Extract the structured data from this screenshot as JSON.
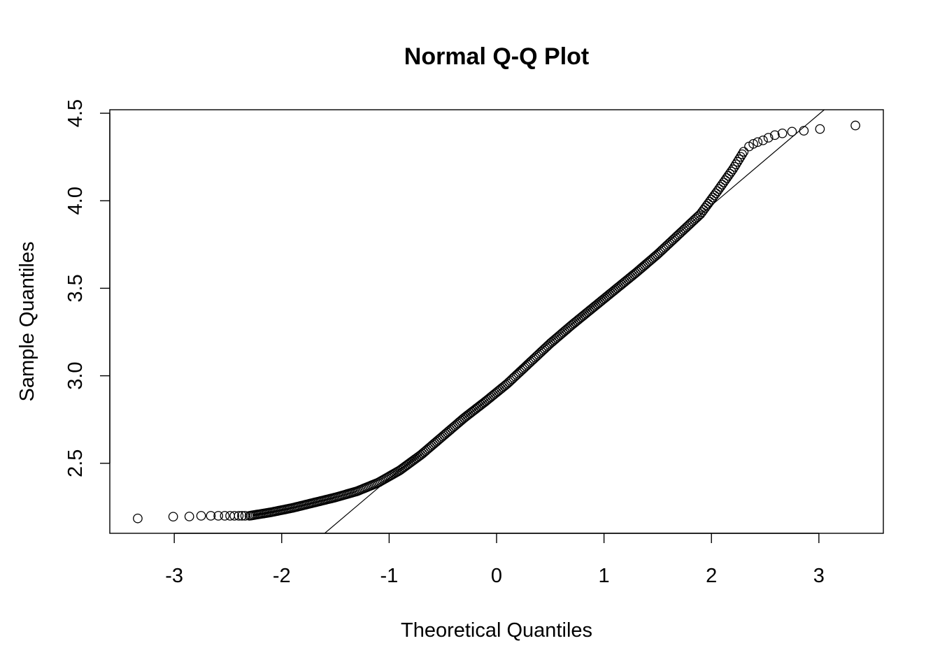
{
  "chart_data": {
    "type": "scatter",
    "title": "Normal Q-Q Plot",
    "xlabel": "Theoretical Quantiles",
    "ylabel": "Sample Quantiles",
    "xlim": [
      -3.6,
      3.6
    ],
    "ylim": [
      2.1,
      4.52
    ],
    "x_ticks": [
      -3,
      -2,
      -1,
      0,
      1,
      2,
      3
    ],
    "x_tick_labels": [
      "-3",
      "-2",
      "-1",
      "0",
      "1",
      "2",
      "3"
    ],
    "y_ticks": [
      2.5,
      3.0,
      3.5,
      4.0,
      4.5
    ],
    "y_tick_labels": [
      "2.5",
      "3.0",
      "3.5",
      "4.0",
      "4.5"
    ],
    "grid": false,
    "legend": "none",
    "marker": "open-circle",
    "reference_line": {
      "x": [
        -1.6,
        3.05
      ],
      "y": [
        2.1,
        4.52
      ]
    },
    "curve_points": [
      [
        -2.3,
        2.2
      ],
      [
        -2.1,
        2.22
      ],
      [
        -1.9,
        2.245
      ],
      [
        -1.7,
        2.275
      ],
      [
        -1.5,
        2.305
      ],
      [
        -1.3,
        2.34
      ],
      [
        -1.1,
        2.39
      ],
      [
        -0.9,
        2.46
      ],
      [
        -0.7,
        2.55
      ],
      [
        -0.5,
        2.655
      ],
      [
        -0.3,
        2.76
      ],
      [
        -0.1,
        2.855
      ],
      [
        0.1,
        2.955
      ],
      [
        0.3,
        3.07
      ],
      [
        0.5,
        3.185
      ],
      [
        0.7,
        3.29
      ],
      [
        0.9,
        3.39
      ],
      [
        1.1,
        3.49
      ],
      [
        1.3,
        3.59
      ],
      [
        1.5,
        3.695
      ],
      [
        1.7,
        3.81
      ],
      [
        1.9,
        3.925
      ],
      [
        2.05,
        4.05
      ],
      [
        2.2,
        4.18
      ],
      [
        2.3,
        4.28
      ]
    ],
    "tail_points": [
      [
        -3.34,
        2.185
      ],
      [
        -3.01,
        2.195
      ],
      [
        -2.86,
        2.196
      ],
      [
        -2.75,
        2.2
      ],
      [
        -2.66,
        2.2
      ],
      [
        -2.59,
        2.2
      ],
      [
        -2.53,
        2.2
      ],
      [
        -2.48,
        2.2
      ],
      [
        -2.44,
        2.2
      ],
      [
        -2.4,
        2.2
      ],
      [
        -2.37,
        2.2
      ],
      [
        -2.34,
        2.2
      ],
      [
        2.35,
        4.31
      ],
      [
        2.39,
        4.325
      ],
      [
        2.43,
        4.335
      ],
      [
        2.48,
        4.345
      ],
      [
        2.53,
        4.36
      ],
      [
        2.59,
        4.375
      ],
      [
        2.66,
        4.385
      ],
      [
        2.75,
        4.395
      ],
      [
        2.86,
        4.4
      ],
      [
        3.01,
        4.41
      ],
      [
        3.34,
        4.43
      ]
    ]
  }
}
